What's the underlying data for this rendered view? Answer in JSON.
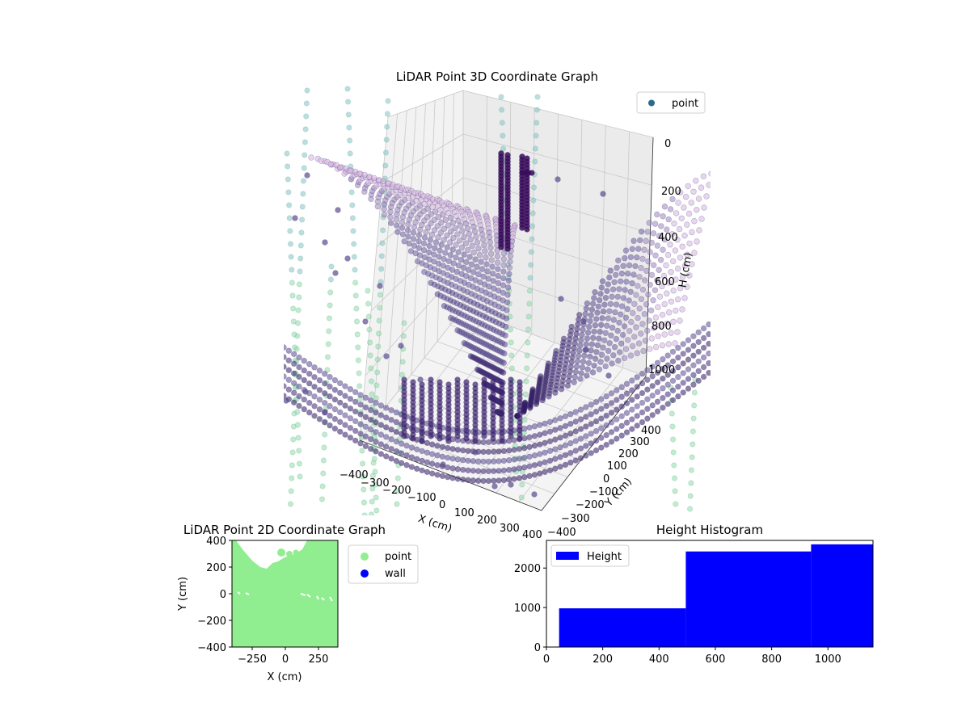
{
  "chart_data": [
    {
      "type": "scatter",
      "projection": "3d",
      "title": "LiDAR Point 3D Coordinate Graph",
      "xlabel": "X (cm)",
      "ylabel": "Y (cm)",
      "zlabel": "H (cm)",
      "x_ticks": [
        "−400",
        "−300",
        "−200",
        "−100",
        "0",
        "100",
        "200",
        "300",
        "400"
      ],
      "y_ticks": [
        "−400",
        "−300",
        "−200",
        "−100",
        "0",
        "100",
        "200",
        "300",
        "400"
      ],
      "z_ticks": [
        "0",
        "200",
        "400",
        "600",
        "800",
        "1000"
      ],
      "zlim": [
        0,
        1000
      ],
      "z_inverted": true,
      "legend": {
        "position": "top-right",
        "entries": [
          {
            "name": "point",
            "color": "#2a6a8f"
          }
        ]
      },
      "colormap": "viridis",
      "grid": true
    },
    {
      "type": "scatter",
      "title": "LiDAR Point 2D Coordinate Graph",
      "xlabel": "X (cm)",
      "ylabel": "Y (cm)",
      "xlim": [
        -400,
        400
      ],
      "ylim": [
        -400,
        400
      ],
      "x_ticks": [
        "−250",
        "0",
        "250"
      ],
      "y_ticks": [
        "−400",
        "−200",
        "0",
        "200",
        "400"
      ],
      "series": [
        {
          "name": "point",
          "color": "#90ee90"
        },
        {
          "name": "wall",
          "color": "#0000ff"
        }
      ],
      "legend": {
        "position": "outside-right"
      }
    },
    {
      "type": "bar",
      "title": "Height Histogram",
      "xlim": [
        0,
        1160
      ],
      "ylim": [
        0,
        2700
      ],
      "x_ticks": [
        "0",
        "200",
        "400",
        "600",
        "800",
        "1000"
      ],
      "y_ticks": [
        "0",
        "1000",
        "2000"
      ],
      "bins": [
        {
          "x0": 45,
          "x1": 495,
          "count": 980
        },
        {
          "x0": 495,
          "x1": 940,
          "count": 2420
        },
        {
          "x0": 940,
          "x1": 1160,
          "count": 2600
        }
      ],
      "color": "#0000ff",
      "legend": {
        "position": "top-left",
        "entries": [
          {
            "name": "Height",
            "color": "#0000ff"
          }
        ]
      }
    }
  ]
}
